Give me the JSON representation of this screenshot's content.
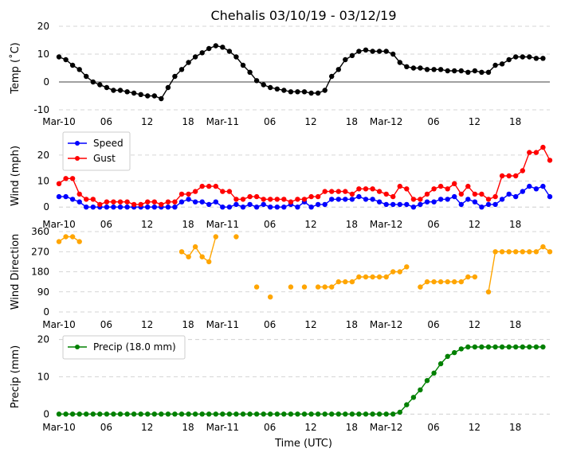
{
  "chart_data": {
    "title": "Chehalis 03/10/19 - 03/12/19",
    "xlabel": "Time (UTC)",
    "x_ticks": [
      "Mar-10",
      "06",
      "12",
      "18",
      "Mar-11",
      "06",
      "12",
      "18",
      "Mar-12",
      "06",
      "12",
      "18"
    ],
    "panels": [
      {
        "type": "line",
        "ylabel": "Temp (˚C)",
        "ylim": [
          -10,
          20
        ],
        "yticks": [
          "-10",
          "0",
          "10",
          "20"
        ],
        "zero_line": true,
        "series": [
          {
            "color": "#000000",
            "values": [
              9,
              8,
              6,
              4.5,
              2,
              0,
              -1,
              -2,
              -3,
              -3,
              -3.5,
              -4,
              -4.5,
              -5,
              -5,
              -6,
              -2,
              2,
              4.5,
              7,
              9,
              10.5,
              12,
              13,
              12.5,
              11,
              9,
              6,
              3.5,
              0.5,
              -1,
              -2,
              -2.5,
              -3,
              -3.5,
              -3.5,
              -3.5,
              -4,
              -4,
              -3,
              2,
              4.5,
              8,
              9.5,
              11,
              11.5,
              11,
              11,
              11,
              10,
              7,
              5.5,
              5,
              5,
              4.5,
              4.5,
              4.5,
              4,
              4,
              4,
              3.5,
              4,
              3.5,
              3.5,
              6,
              6.5,
              8,
              9,
              9,
              9,
              8.5,
              8.5
            ]
          }
        ]
      },
      {
        "type": "line",
        "ylabel": "Wind (mph)",
        "ylim": [
          -3,
          27
        ],
        "yticks": [
          "0",
          "10",
          "20"
        ],
        "legend": [
          {
            "label": "Speed",
            "color": "#0000ff"
          },
          {
            "label": "Gust",
            "color": "#ff0000"
          }
        ],
        "series": [
          {
            "name": "Speed",
            "color": "#0000ff",
            "values": [
              4,
              4,
              3,
              2,
              0,
              0,
              0,
              0,
              0,
              0,
              0,
              0,
              0,
              0,
              0,
              0,
              0,
              0,
              2,
              3,
              2,
              2,
              1,
              2,
              0,
              0,
              1,
              0,
              1,
              0,
              1,
              0,
              0,
              0,
              1,
              0,
              2,
              0,
              1,
              1,
              3,
              3,
              3,
              3,
              4,
              3,
              3,
              2,
              1,
              1,
              1,
              1,
              0,
              1,
              2,
              2,
              3,
              3,
              4,
              1,
              3,
              2,
              0,
              1,
              1,
              3,
              5,
              4,
              6,
              8,
              7,
              8,
              4
            ]
          },
          {
            "name": "Gust",
            "color": "#ff0000",
            "values": [
              9,
              11,
              11,
              5,
              3,
              3,
              1,
              2,
              2,
              2,
              2,
              1,
              1,
              2,
              2,
              1,
              2,
              2,
              5,
              5,
              6,
              8,
              8,
              8,
              6,
              6,
              3,
              3,
              4,
              4,
              3,
              3,
              3,
              3,
              2,
              3,
              3,
              4,
              4,
              6,
              6,
              6,
              6,
              5,
              7,
              7,
              7,
              6,
              5,
              4,
              8,
              7,
              3,
              3,
              5,
              7,
              8,
              7,
              9,
              5,
              8,
              5,
              5,
              3,
              4,
              12,
              12,
              12,
              14,
              21,
              21,
              23,
              18
            ]
          }
        ]
      },
      {
        "type": "scatter",
        "ylabel": "Wind Direction",
        "ylim": [
          0,
          360
        ],
        "yticks": [
          "0",
          "90",
          "180",
          "270",
          "360"
        ],
        "series": [
          {
            "color": "#ffa500",
            "connected": true,
            "values": [
              315,
              337,
              337,
              315,
              null,
              null,
              null,
              null,
              null,
              null,
              null,
              null,
              null,
              null,
              null,
              null,
              null,
              null,
              270,
              247,
              292,
              247,
              225,
              337,
              null,
              null,
              337,
              null,
              null,
              112,
              null,
              67,
              null,
              null,
              112,
              null,
              112,
              null,
              112,
              112,
              112,
              135,
              135,
              135,
              157,
              157,
              157,
              157,
              157,
              180,
              180,
              202,
              null,
              112,
              135,
              135,
              135,
              135,
              135,
              135,
              157,
              157,
              null,
              90,
              270,
              270,
              270,
              270,
              270,
              270,
              270,
              292,
              270
            ]
          }
        ]
      },
      {
        "type": "line",
        "ylabel": "Precip (mm)",
        "ylim": [
          -1,
          21
        ],
        "yticks": [
          "0",
          "10",
          "20"
        ],
        "legend": [
          {
            "label": "Precip (18.0 mm)",
            "color": "#008000"
          }
        ],
        "series": [
          {
            "name": "Precip (18.0 mm)",
            "color": "#008000",
            "values": [
              0,
              0,
              0,
              0,
              0,
              0,
              0,
              0,
              0,
              0,
              0,
              0,
              0,
              0,
              0,
              0,
              0,
              0,
              0,
              0,
              0,
              0,
              0,
              0,
              0,
              0,
              0,
              0,
              0,
              0,
              0,
              0,
              0,
              0,
              0,
              0,
              0,
              0,
              0,
              0,
              0,
              0,
              0,
              0,
              0,
              0,
              0,
              0,
              0,
              0,
              0.5,
              2.5,
              4.5,
              6.5,
              9,
              11,
              13.5,
              15.5,
              16.5,
              17.5,
              18,
              18,
              18,
              18,
              18,
              18,
              18,
              18,
              18,
              18,
              18,
              18
            ]
          }
        ]
      }
    ]
  }
}
